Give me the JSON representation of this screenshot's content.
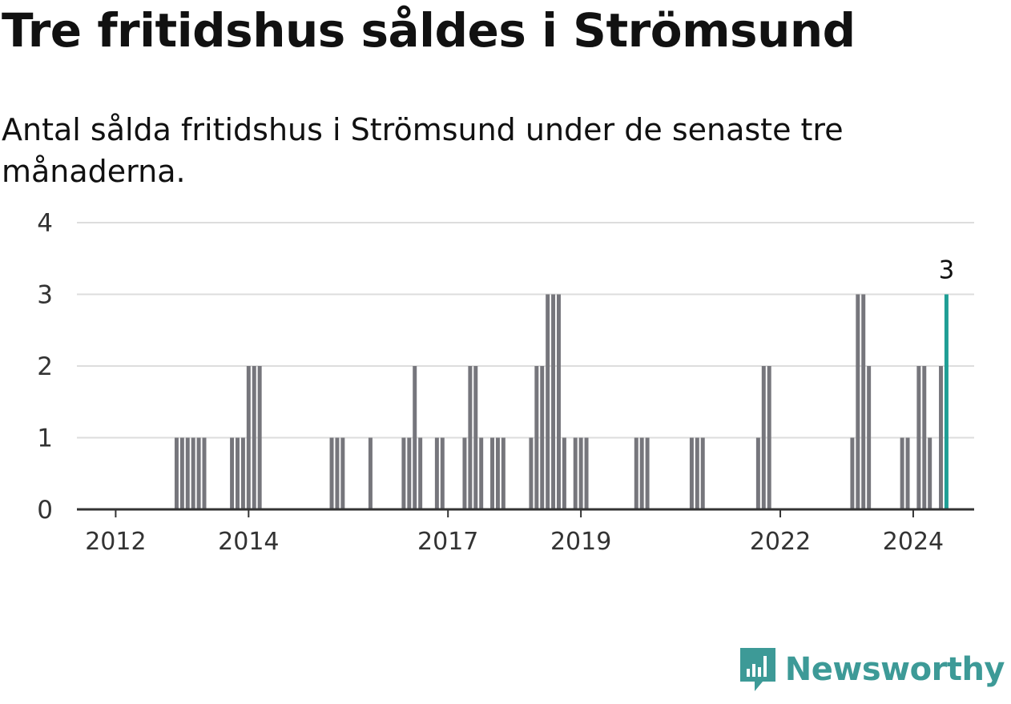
{
  "header": {
    "title": "Tre fritidshus såldes i Strömsund",
    "subtitle": "Antal sålda fritidshus i Strömsund under de senaste tre månaderna."
  },
  "branding": {
    "logo_text": "Newsworthy",
    "logo_icon": "bar-chart-speech-bubble-icon",
    "color": "#3d9a97"
  },
  "colors": {
    "bar": "#76767c",
    "highlight": "#1f9e95",
    "grid": "#dddddd",
    "axis": "#333333"
  },
  "chart_data": {
    "type": "bar",
    "title": "Tre fritidshus såldes i Strömsund",
    "subtitle": "Antal sålda fritidshus i Strömsund under de senaste tre månaderna.",
    "xlabel": "",
    "ylabel": "",
    "ylim": [
      0,
      4
    ],
    "yticks": [
      0,
      1,
      2,
      3,
      4
    ],
    "grid": true,
    "x_range": [
      "2011-06",
      "2024-12"
    ],
    "xticks": [
      {
        "label": "2012",
        "date": "2012-01"
      },
      {
        "label": "2014",
        "date": "2014-01"
      },
      {
        "label": "2017",
        "date": "2017-01"
      },
      {
        "label": "2019",
        "date": "2019-01"
      },
      {
        "label": "2022",
        "date": "2022-01"
      },
      {
        "label": "2024",
        "date": "2024-01"
      }
    ],
    "highlight": {
      "date": "2024-07",
      "value": 3,
      "label": "3"
    },
    "points": [
      {
        "date": "2012-12",
        "value": 1
      },
      {
        "date": "2013-01",
        "value": 1
      },
      {
        "date": "2013-02",
        "value": 1
      },
      {
        "date": "2013-03",
        "value": 1
      },
      {
        "date": "2013-04",
        "value": 1
      },
      {
        "date": "2013-05",
        "value": 1
      },
      {
        "date": "2013-10",
        "value": 1
      },
      {
        "date": "2013-11",
        "value": 1
      },
      {
        "date": "2013-12",
        "value": 1
      },
      {
        "date": "2014-01",
        "value": 2
      },
      {
        "date": "2014-02",
        "value": 2
      },
      {
        "date": "2014-03",
        "value": 2
      },
      {
        "date": "2015-04",
        "value": 1
      },
      {
        "date": "2015-05",
        "value": 1
      },
      {
        "date": "2015-06",
        "value": 1
      },
      {
        "date": "2015-11",
        "value": 1
      },
      {
        "date": "2016-05",
        "value": 1
      },
      {
        "date": "2016-06",
        "value": 1
      },
      {
        "date": "2016-07",
        "value": 2
      },
      {
        "date": "2016-08",
        "value": 1
      },
      {
        "date": "2016-11",
        "value": 1
      },
      {
        "date": "2016-12",
        "value": 1
      },
      {
        "date": "2017-04",
        "value": 1
      },
      {
        "date": "2017-05",
        "value": 2
      },
      {
        "date": "2017-06",
        "value": 2
      },
      {
        "date": "2017-07",
        "value": 1
      },
      {
        "date": "2017-09",
        "value": 1
      },
      {
        "date": "2017-10",
        "value": 1
      },
      {
        "date": "2017-11",
        "value": 1
      },
      {
        "date": "2018-04",
        "value": 1
      },
      {
        "date": "2018-05",
        "value": 2
      },
      {
        "date": "2018-06",
        "value": 2
      },
      {
        "date": "2018-07",
        "value": 3
      },
      {
        "date": "2018-08",
        "value": 3
      },
      {
        "date": "2018-09",
        "value": 3
      },
      {
        "date": "2018-10",
        "value": 1
      },
      {
        "date": "2018-12",
        "value": 1
      },
      {
        "date": "2019-01",
        "value": 1
      },
      {
        "date": "2019-02",
        "value": 1
      },
      {
        "date": "2019-11",
        "value": 1
      },
      {
        "date": "2019-12",
        "value": 1
      },
      {
        "date": "2020-01",
        "value": 1
      },
      {
        "date": "2020-09",
        "value": 1
      },
      {
        "date": "2020-10",
        "value": 1
      },
      {
        "date": "2020-11",
        "value": 1
      },
      {
        "date": "2021-09",
        "value": 1
      },
      {
        "date": "2021-10",
        "value": 2
      },
      {
        "date": "2021-11",
        "value": 2
      },
      {
        "date": "2023-02",
        "value": 1
      },
      {
        "date": "2023-03",
        "value": 3
      },
      {
        "date": "2023-04",
        "value": 3
      },
      {
        "date": "2023-05",
        "value": 2
      },
      {
        "date": "2023-11",
        "value": 1
      },
      {
        "date": "2023-12",
        "value": 1
      },
      {
        "date": "2024-02",
        "value": 2
      },
      {
        "date": "2024-03",
        "value": 2
      },
      {
        "date": "2024-04",
        "value": 1
      },
      {
        "date": "2024-06",
        "value": 2
      },
      {
        "date": "2024-07",
        "value": 3
      }
    ]
  }
}
